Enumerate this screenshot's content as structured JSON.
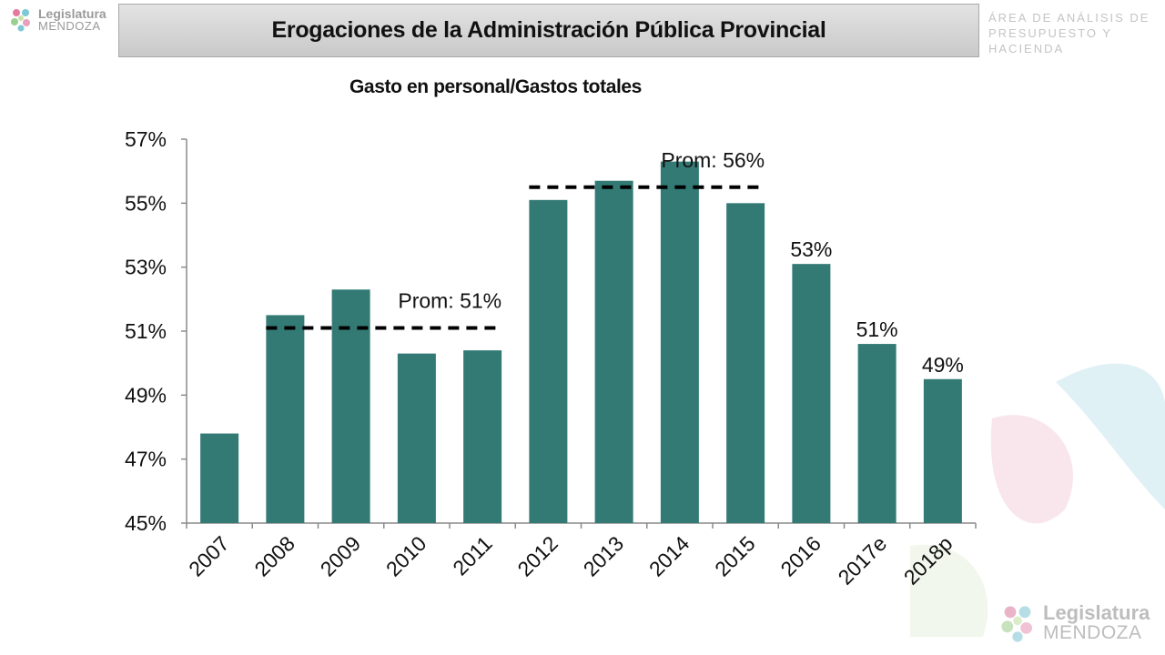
{
  "header": {
    "title": "Erogaciones de la Administración Pública Provincial",
    "department_line1": "ÁREA DE ANÁLISIS DE",
    "department_line2": "PRESUPUESTO Y HACIENDA"
  },
  "logo": {
    "name": "Legislatura",
    "sub": "MENDOZA"
  },
  "colors": {
    "bar": "#337A75",
    "axis": "#8a8a8a",
    "average_line": "#000000"
  },
  "chart_data": {
    "type": "bar",
    "title": "Gasto en personal/Gastos totales",
    "xlabel": "",
    "ylabel": "",
    "categories": [
      "2007",
      "2008",
      "2009",
      "2010",
      "2011",
      "2012",
      "2013",
      "2014",
      "2015",
      "2016",
      "2017e",
      "2018p"
    ],
    "values": [
      47.8,
      51.5,
      52.3,
      50.3,
      50.4,
      55.1,
      55.7,
      56.3,
      55.0,
      53.1,
      50.6,
      49.5
    ],
    "value_unit": "%",
    "ylim": [
      45,
      57
    ],
    "yticks": [
      45,
      47,
      49,
      51,
      53,
      55,
      57
    ],
    "ytick_labels": [
      "45%",
      "47%",
      "49%",
      "51%",
      "53%",
      "55%",
      "57%"
    ],
    "grid": false,
    "data_labels": [
      {
        "category": "2016",
        "text": "53%"
      },
      {
        "category": "2017e",
        "text": "51%"
      },
      {
        "category": "2018p",
        "text": "49%"
      }
    ],
    "averages": [
      {
        "label": "Prom: 51%",
        "value": 51.1,
        "from": "2008",
        "to": "2011"
      },
      {
        "label": "Prom: 56%",
        "value": 55.5,
        "from": "2012",
        "to": "2015"
      }
    ]
  }
}
